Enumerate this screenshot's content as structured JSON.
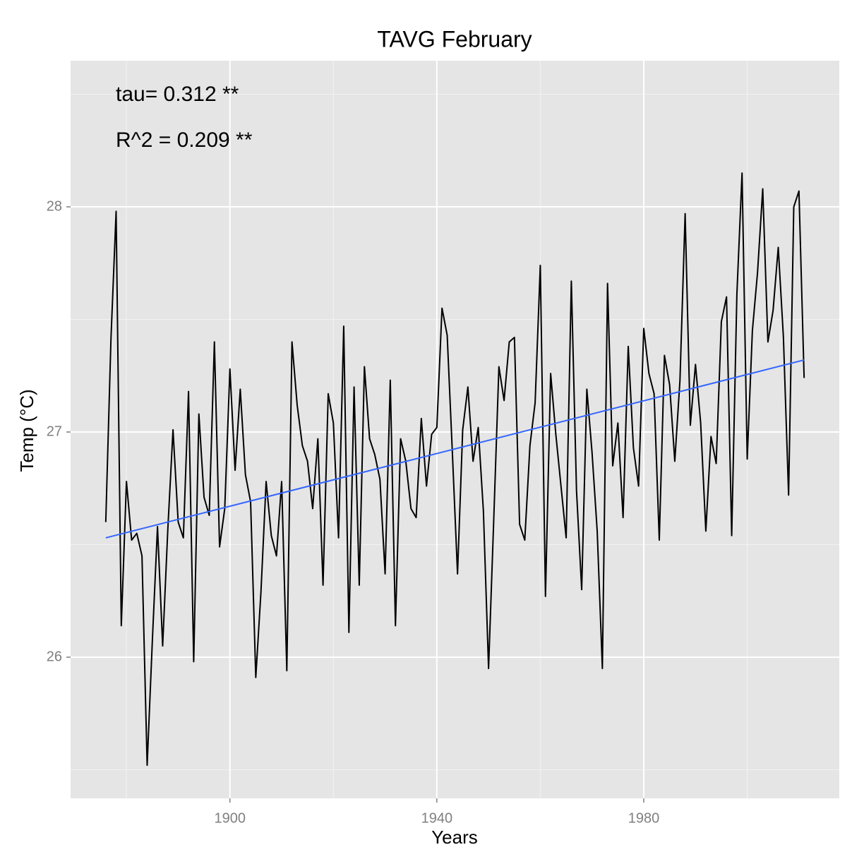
{
  "chart_data": {
    "type": "line",
    "title": "TAVG February",
    "x_label": "Years",
    "y_label": "Temp (°C)",
    "annotations": [
      "tau= 0.312 **",
      "R^2 =  0.209 **"
    ],
    "x": [
      1876,
      1877,
      1878,
      1879,
      1880,
      1881,
      1882,
      1883,
      1884,
      1885,
      1886,
      1887,
      1888,
      1889,
      1890,
      1891,
      1892,
      1893,
      1894,
      1895,
      1896,
      1897,
      1898,
      1899,
      1900,
      1901,
      1902,
      1903,
      1904,
      1905,
      1906,
      1907,
      1908,
      1909,
      1910,
      1911,
      1912,
      1913,
      1914,
      1915,
      1916,
      1917,
      1918,
      1919,
      1920,
      1921,
      1922,
      1923,
      1924,
      1925,
      1926,
      1927,
      1928,
      1929,
      1930,
      1931,
      1932,
      1933,
      1934,
      1935,
      1936,
      1937,
      1938,
      1939,
      1940,
      1941,
      1942,
      1943,
      1944,
      1945,
      1946,
      1947,
      1948,
      1949,
      1950,
      1951,
      1952,
      1953,
      1954,
      1955,
      1956,
      1957,
      1958,
      1959,
      1960,
      1961,
      1962,
      1963,
      1964,
      1965,
      1966,
      1967,
      1968,
      1969,
      1970,
      1971,
      1972,
      1973,
      1974,
      1975,
      1976,
      1977,
      1978,
      1979,
      1980,
      1981,
      1982,
      1983,
      1984,
      1985,
      1986,
      1987,
      1988,
      1989,
      1990,
      1991,
      1992,
      1993,
      1994,
      1995,
      1996,
      1997,
      1998,
      1999,
      2000,
      2001,
      2002,
      2003,
      2004,
      2005,
      2006,
      2007,
      2008,
      2009,
      2010,
      2011
    ],
    "series": [
      {
        "color": "#000000",
        "values": [
          26.6,
          27.41,
          27.98,
          26.14,
          26.78,
          26.52,
          26.55,
          26.45,
          25.52,
          26.07,
          26.58,
          26.05,
          26.57,
          27.01,
          26.6,
          26.53,
          27.18,
          25.98,
          27.08,
          26.71,
          26.63,
          27.4,
          26.49,
          26.66,
          27.28,
          26.83,
          27.19,
          26.81,
          26.69,
          25.91,
          26.29,
          26.78,
          26.54,
          26.45,
          26.78,
          25.94,
          27.4,
          27.12,
          26.94,
          26.87,
          26.66,
          26.97,
          26.32,
          27.17,
          27.04,
          26.53,
          27.47,
          26.11,
          27.2,
          26.32,
          27.29,
          26.97,
          26.9,
          26.79,
          26.37,
          27.23,
          26.14,
          26.97,
          26.87,
          26.66,
          26.62,
          27.06,
          26.76,
          26.99,
          27.02,
          27.55,
          27.43,
          26.91,
          26.37,
          27.01,
          27.2,
          26.87,
          27.02,
          26.65,
          25.95,
          26.61,
          27.29,
          27.14,
          27.4,
          27.42,
          26.59,
          26.52,
          26.94,
          27.13,
          27.74,
          26.27,
          27.26,
          26.99,
          26.76,
          26.53,
          27.67,
          26.74,
          26.3,
          27.19,
          26.91,
          26.56,
          25.95,
          27.66,
          26.85,
          27.04,
          26.62,
          27.38,
          26.93,
          26.76,
          27.46,
          27.26,
          27.17,
          26.52,
          27.34,
          27.21,
          26.87,
          27.23,
          27.97,
          27.03,
          27.3,
          27.04,
          26.56,
          26.98,
          26.86,
          27.49,
          27.6,
          26.54,
          27.61,
          28.15,
          26.88,
          27.45,
          27.71,
          28.08,
          27.4,
          27.54,
          27.82,
          27.42,
          26.72,
          28.0,
          28.07,
          27.24
        ]
      }
    ],
    "trend_line": {
      "color": "#3366ff",
      "x": [
        1876,
        2011
      ],
      "values": [
        26.53,
        27.32
      ]
    },
    "xlim": [
      1869.2,
      2017.8
    ],
    "ylim": [
      25.373,
      28.649
    ],
    "xticks": [
      1900,
      1940,
      1980
    ],
    "yticks": [
      26,
      27,
      28
    ],
    "x_minor_ticks": [
      1880,
      1920,
      1960,
      2000
    ],
    "y_minor_ticks": [
      25.5,
      26.5,
      27.5,
      28.5
    ],
    "grid": true
  }
}
